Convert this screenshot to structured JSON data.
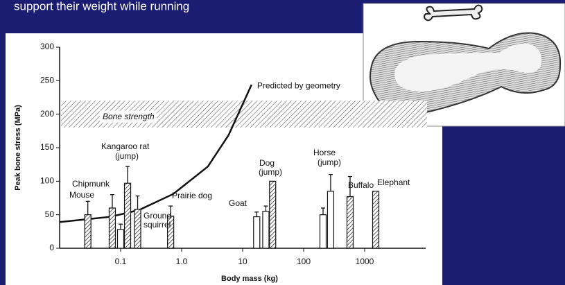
{
  "slide_text": "support their weight while running",
  "chart_data": {
    "type": "bar",
    "x_label": "Body mass (kg)",
    "y_label": "Peak bone stress (MPa)",
    "xscale": "log",
    "xlim": [
      0.01,
      10000
    ],
    "xticks": [
      0.1,
      {
        "value": 1,
        "label": "1.0"
      },
      10,
      100,
      1000
    ],
    "ylim": [
      0,
      300
    ],
    "yticks": [
      0,
      50,
      100,
      150,
      200,
      250,
      300
    ],
    "bone_strength": {
      "label": "Bone strength",
      "range": [
        180,
        220
      ]
    },
    "series": [
      {
        "fill": "hatch",
        "x": [
          0.029,
          0.073,
          0.13,
          0.19,
          0.66,
          31,
          577,
          1520
        ],
        "values": [
          50,
          60,
          97,
          58,
          48,
          100,
          77,
          85
        ],
        "errors": [
          20,
          20,
          25,
          20,
          15,
          null,
          30,
          null
        ]
      },
      {
        "fill": "white",
        "x": [
          0.1,
          17,
          24,
          208,
          277
        ],
        "values": [
          28,
          47,
          55,
          50,
          85
        ],
        "errors": [
          8,
          7,
          8,
          10,
          25
        ]
      }
    ],
    "curve": {
      "label": "Predicted by geometry",
      "x": [
        0.01,
        0.069,
        0.2,
        0.73,
        2.7,
        5.9,
        14
      ],
      "values": [
        39,
        47,
        57,
        81,
        122,
        169,
        244
      ]
    },
    "annotations": [
      "Mouse",
      "Chipmunk",
      "Kangaroo rat",
      "(jump)",
      "Ground",
      "squirrel",
      "Prairie dog",
      "Goat",
      "Dog",
      "(jump)",
      "Horse",
      "(jump)",
      "Buffalo",
      "Elephant"
    ]
  }
}
